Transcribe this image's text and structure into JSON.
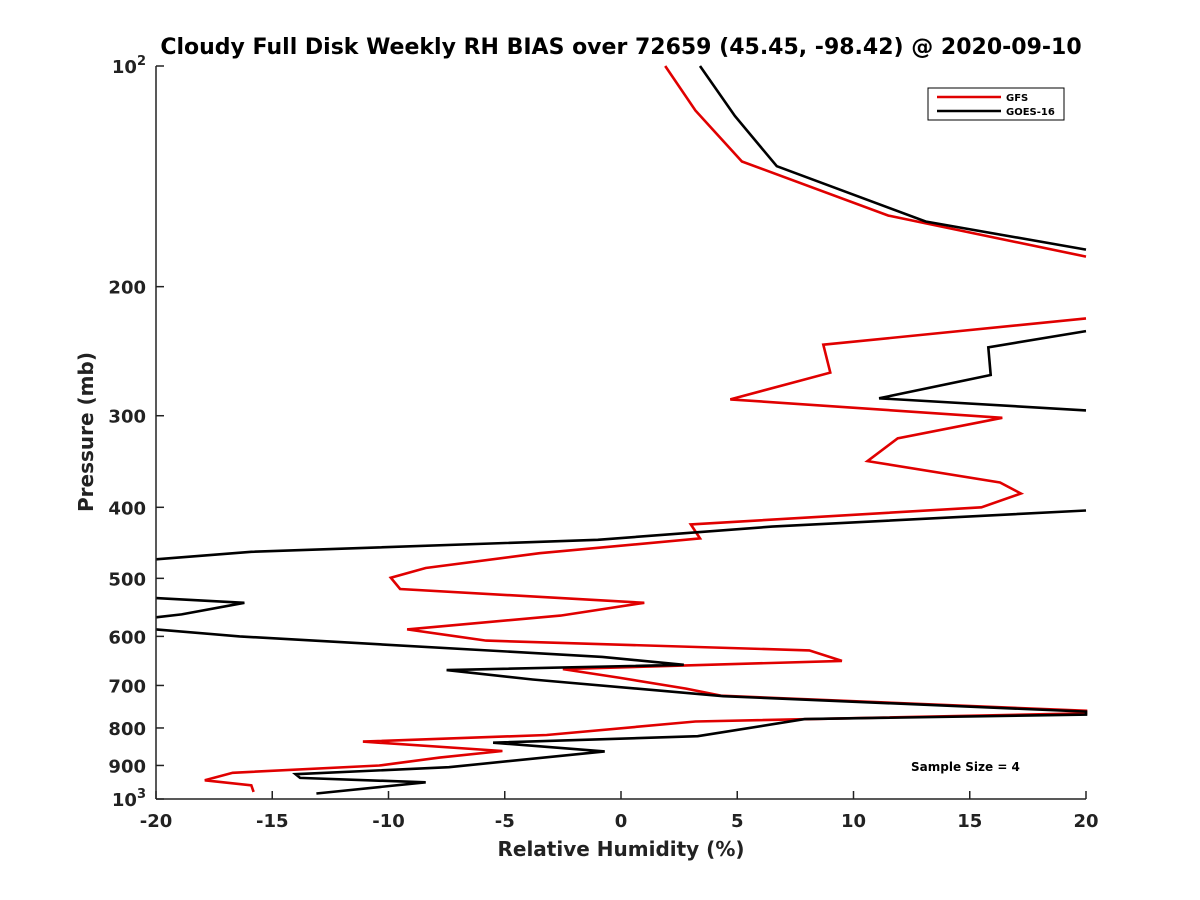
{
  "chart_data": {
    "type": "line",
    "title": "Cloudy Full Disk Weekly RH BIAS over 72659 (45.45, -98.42) @ 2020-09-10",
    "xlabel": "Relative Humidity (%)",
    "ylabel": "Pressure (mb)",
    "xlim": [
      -20,
      20
    ],
    "ylim": [
      100,
      1000
    ],
    "yscale": "log",
    "y_reversed": true,
    "x_ticks": [
      "-20",
      "-15",
      "-10",
      "-5",
      "0",
      "5",
      "10",
      "15",
      "20"
    ],
    "y_tick_values": [
      100,
      200,
      300,
      400,
      500,
      600,
      700,
      800,
      900,
      1000
    ],
    "y_tick_labels": [
      {
        "base": "10",
        "exp": "2"
      },
      {
        "base": "200",
        "exp": ""
      },
      {
        "base": "300",
        "exp": ""
      },
      {
        "base": "400",
        "exp": ""
      },
      {
        "base": "500",
        "exp": ""
      },
      {
        "base": "600",
        "exp": ""
      },
      {
        "base": "700",
        "exp": ""
      },
      {
        "base": "800",
        "exp": ""
      },
      {
        "base": "900",
        "exp": ""
      },
      {
        "base": "10",
        "exp": "3"
      }
    ],
    "grid": false,
    "legend_position": "top-right",
    "annotation": "Sample Size = 4",
    "series": [
      {
        "name": "GFS",
        "color": "#e00000",
        "points": [
          [
            1.9,
            100
          ],
          [
            3.2,
            115
          ],
          [
            5.2,
            135
          ],
          [
            11.5,
            160
          ],
          [
            20,
            182
          ],
          [
            null,
            null
          ],
          [
            20,
            221
          ],
          [
            8.7,
            240
          ],
          [
            9.0,
            262
          ],
          [
            4.7,
            285
          ],
          [
            16.4,
            302
          ],
          [
            11.9,
            322
          ],
          [
            10.6,
            346
          ],
          [
            16.3,
            370
          ],
          [
            17.2,
            383
          ],
          [
            15.5,
            400
          ],
          [
            3.0,
            422
          ],
          [
            3.4,
            441
          ],
          [
            -3.5,
            462
          ],
          [
            -8.4,
            484
          ],
          [
            -9.9,
            499
          ],
          [
            -9.5,
            517
          ],
          [
            1.0,
            540
          ],
          [
            -2.6,
            562
          ],
          [
            -9.2,
            587
          ],
          [
            -5.8,
            608
          ],
          [
            8.1,
            627
          ],
          [
            9.5,
            648
          ],
          [
            -2.5,
            665
          ],
          [
            -0.1,
            683
          ],
          [
            2.8,
            707
          ],
          [
            4.3,
            723
          ],
          [
            20,
            758
          ],
          [
            20,
            764
          ],
          [
            3.2,
            784
          ],
          [
            -3.2,
            818
          ],
          [
            -11.1,
            835
          ],
          [
            -5.1,
            860
          ],
          [
            -7.8,
            878
          ],
          [
            -10.4,
            900
          ],
          [
            -16.7,
            921
          ],
          [
            -17.9,
            943
          ],
          [
            -15.9,
            958
          ],
          [
            -15.8,
            978
          ]
        ]
      },
      {
        "name": "GOES-16",
        "color": "#000000",
        "points": [
          [
            3.4,
            100
          ],
          [
            4.9,
            117
          ],
          [
            6.7,
            137
          ],
          [
            13.1,
            163
          ],
          [
            20,
            178
          ],
          [
            null,
            null
          ],
          [
            20,
            230
          ],
          [
            15.8,
            242
          ],
          [
            15.9,
            264
          ],
          [
            11.1,
            284
          ],
          [
            20,
            295
          ],
          [
            null,
            null
          ],
          [
            20,
            404
          ],
          [
            6.5,
            425
          ],
          [
            -1.0,
            443
          ],
          [
            -15.9,
            460
          ],
          [
            -20,
            471
          ],
          [
            null,
            null
          ],
          [
            -20,
            532
          ],
          [
            -16.2,
            540
          ],
          [
            -18.9,
            560
          ],
          [
            -20,
            565
          ],
          [
            null,
            null
          ],
          [
            -20,
            587
          ],
          [
            -16.4,
            600
          ],
          [
            -0.8,
            640
          ],
          [
            2.7,
            656
          ],
          [
            -7.5,
            667
          ],
          [
            -3.8,
            687
          ],
          [
            4.4,
            724
          ],
          [
            20,
            760
          ],
          [
            20,
            767
          ],
          [
            7.9,
            778
          ],
          [
            3.3,
            821
          ],
          [
            -5.5,
            838
          ],
          [
            -0.7,
            861
          ],
          [
            -7.4,
            905
          ],
          [
            -14.0,
            925
          ],
          [
            -13.8,
            936
          ],
          [
            -8.4,
            949
          ],
          [
            -13.1,
            983
          ]
        ]
      }
    ]
  }
}
